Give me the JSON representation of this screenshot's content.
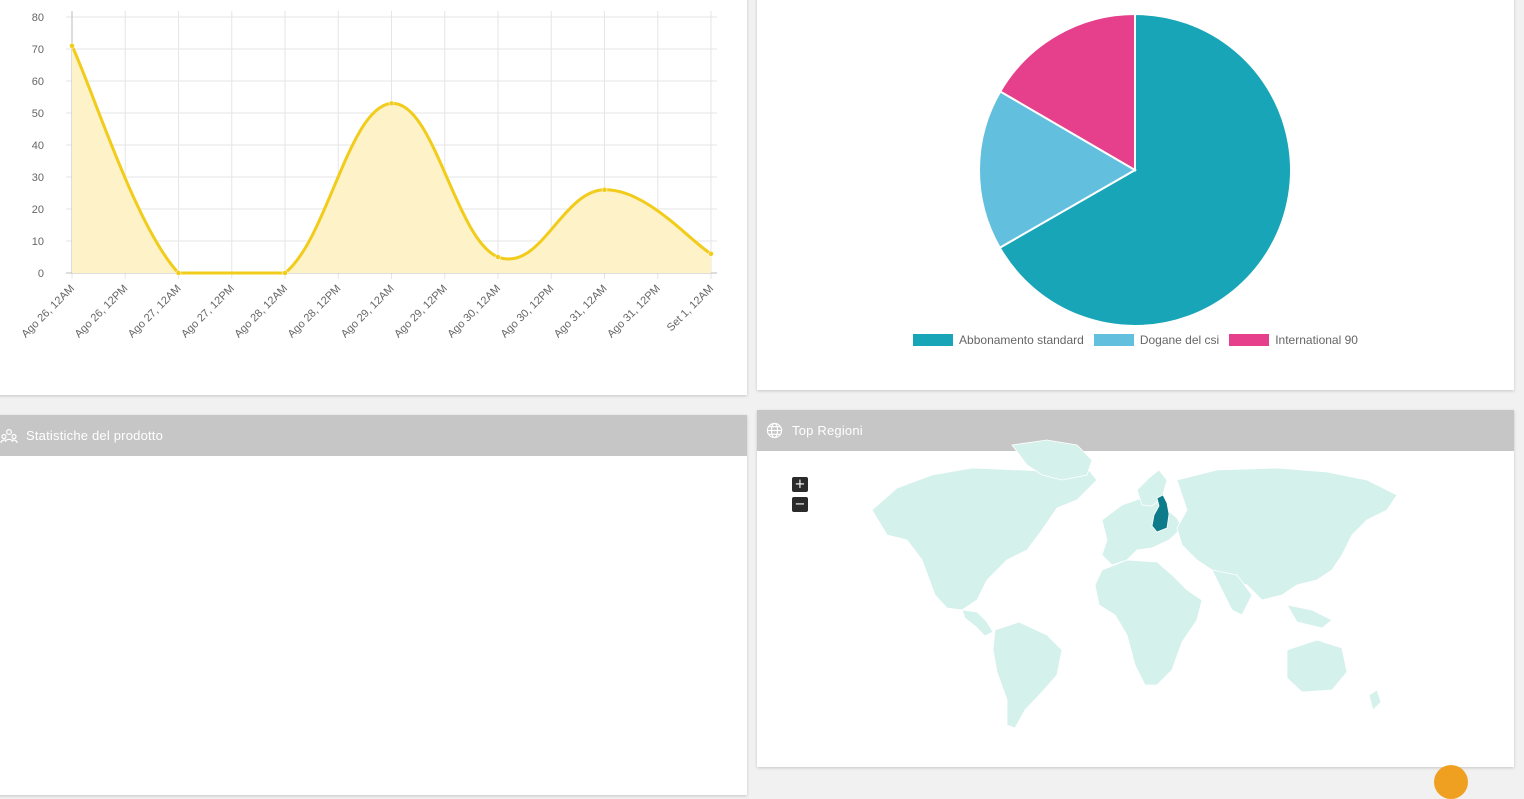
{
  "line_panel": {
    "chart_data": {
      "type": "line",
      "x": [
        "Ago 26, 12AM",
        "Ago 26, 12PM",
        "Ago 27, 12AM",
        "Ago 27, 12PM",
        "Ago 28, 12AM",
        "Ago 28, 12PM",
        "Ago 29, 12AM",
        "Ago 29, 12PM",
        "Ago 30, 12AM",
        "Ago 30, 12PM",
        "Ago 31, 12AM",
        "Ago 31, 12PM",
        "Set 1, 12AM"
      ],
      "series": [
        {
          "points": [
            {
              "x": "Ago 26, 12AM",
              "y": 71
            },
            {
              "x": "Ago 27, 12AM",
              "y": 0
            },
            {
              "x": "Ago 28, 12AM",
              "y": 0
            },
            {
              "x": "Ago 29, 12AM",
              "y": 53
            },
            {
              "x": "Ago 30, 12AM",
              "y": 5
            },
            {
              "x": "Ago 31, 12AM",
              "y": 26
            },
            {
              "x": "Set 1, 12AM",
              "y": 6
            }
          ]
        }
      ],
      "yticks": [
        0,
        10,
        20,
        30,
        40,
        50,
        60,
        70,
        80
      ],
      "ylim": [
        0,
        80
      ],
      "grid": true,
      "line_color": "#f1cc1a",
      "fill_color": "#fdf2c8"
    }
  },
  "pie_panel": {
    "chart_data": {
      "type": "pie",
      "labels": [
        "Abbonamento standard",
        "Dogane del csi",
        "International 90"
      ],
      "values": [
        66.7,
        16.7,
        16.6
      ],
      "colors": [
        "#18a5b8",
        "#62c0de",
        "#e63f8b"
      ],
      "legend_position": "bottom"
    }
  },
  "product_stats": {
    "title": "Statistiche del prodotto",
    "icon": "users-group-icon"
  },
  "regions": {
    "title": "Top Regioni",
    "icon": "globe-icon",
    "zoom_in_label": "+",
    "zoom_out_label": "−",
    "highlighted_region": "Finland",
    "map_base_color": "#d5f1ec",
    "highlight_color": "#0d7b8a"
  }
}
